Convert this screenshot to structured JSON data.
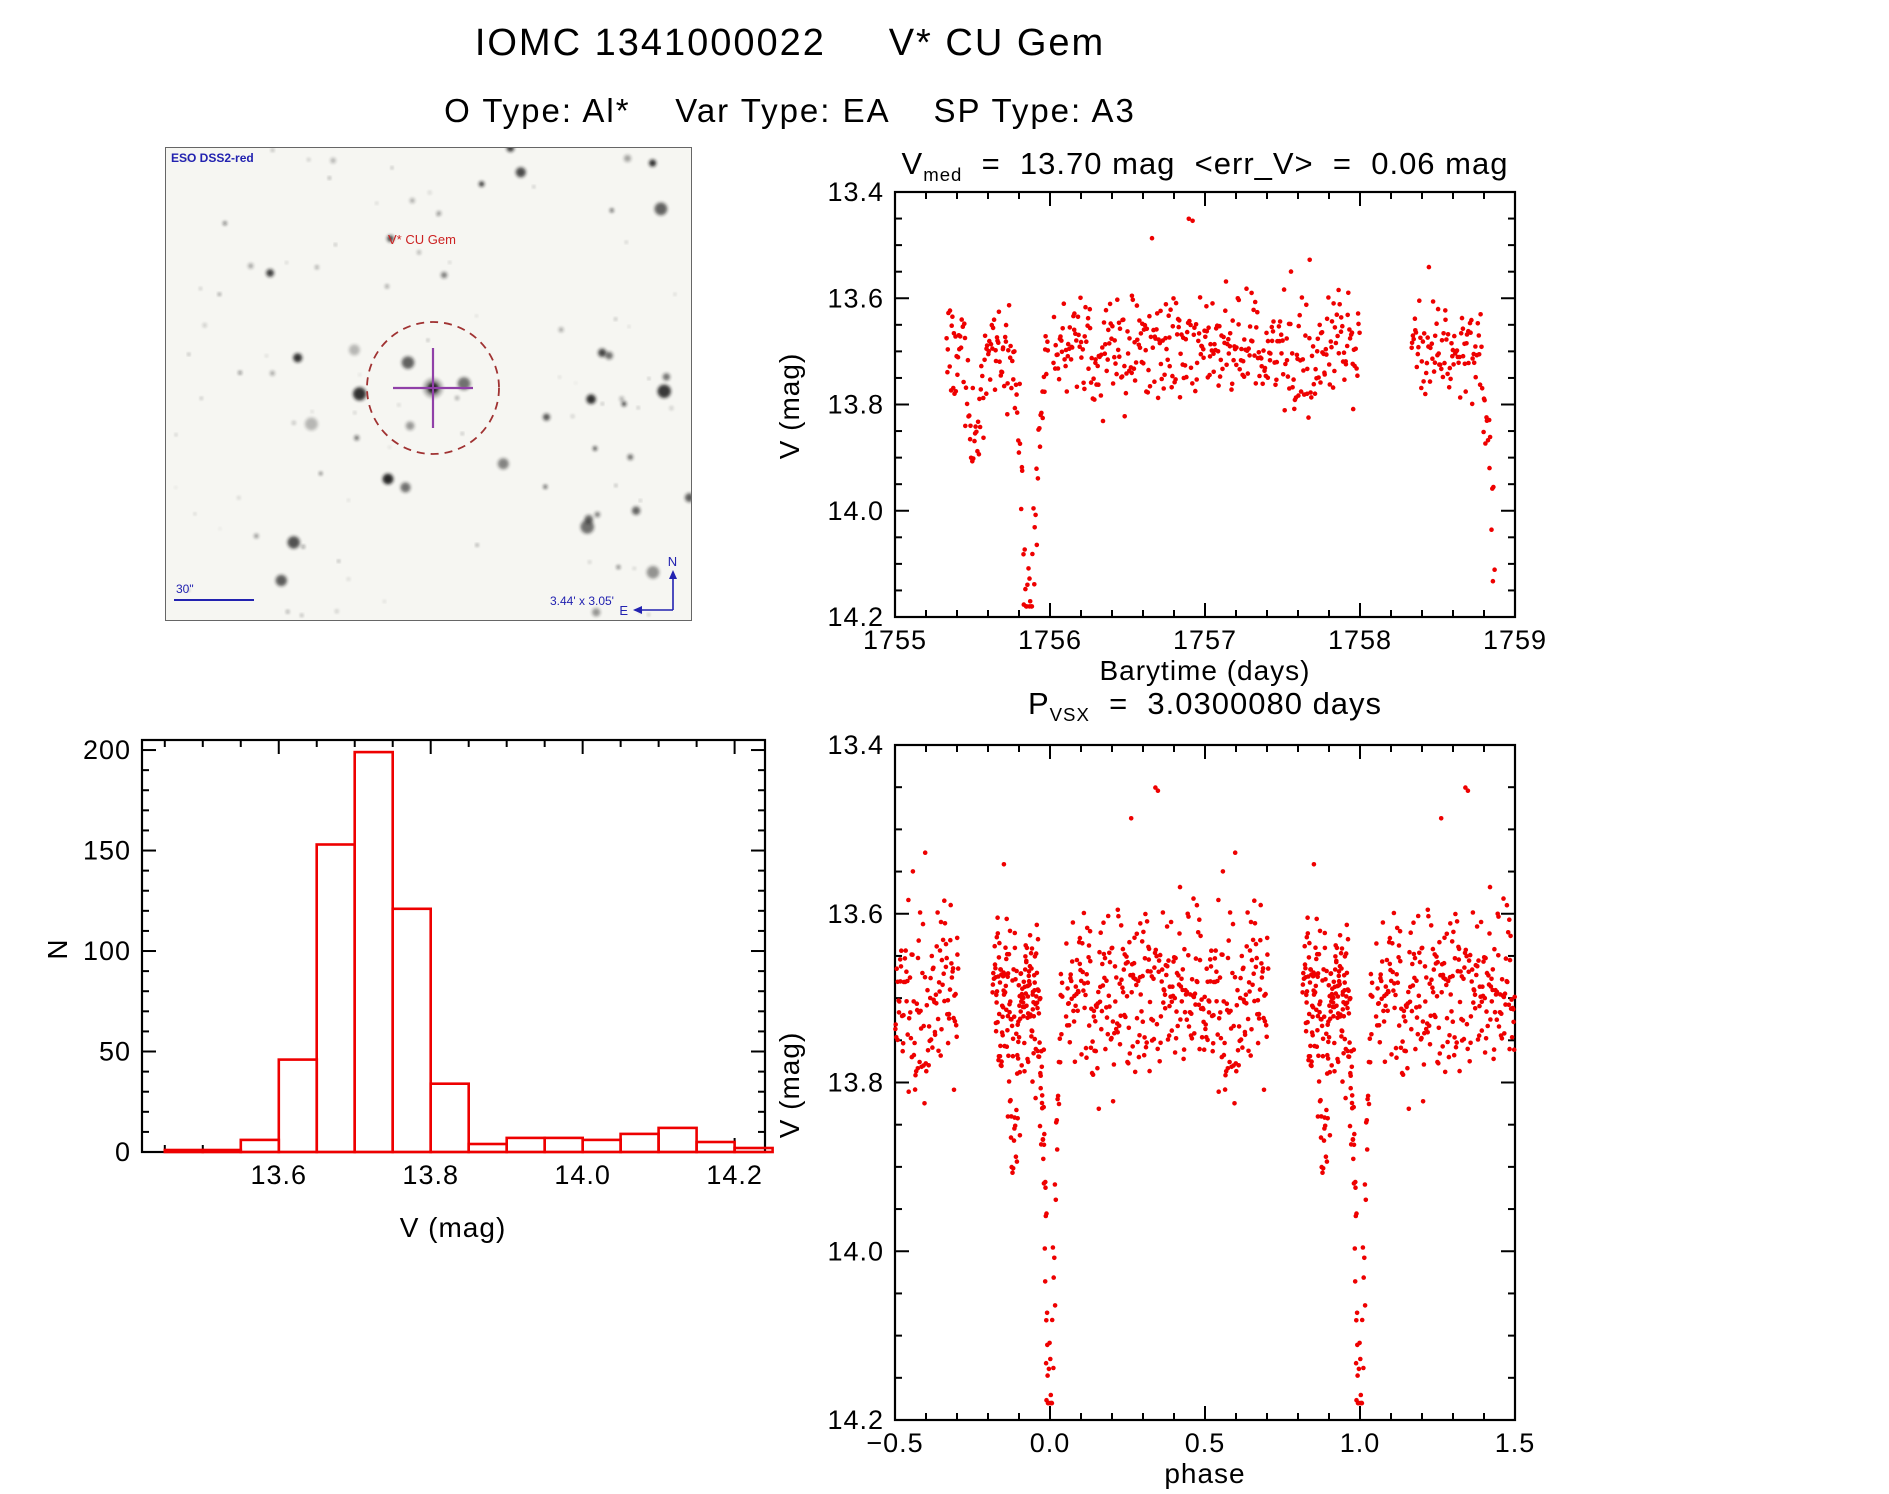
{
  "page": {
    "title": "IOMC 1341000022     V* CU Gem",
    "subtitle": "O Type: Al*    Var Type: EA    SP Type: A3",
    "text_color": "#000000",
    "background": "#ffffff",
    "accent_red": "#ee0000"
  },
  "finder": {
    "survey_label": "ESO DSS2-red",
    "target_label": "V* CU Gem",
    "scale_label": "30\"",
    "size_label": "3.44' x 3.05'",
    "compass_n_label": "N",
    "compass_e_label": "E",
    "blue": "#2222b0",
    "red": "#cc2222",
    "circle_color": "#a03232",
    "cross_color": "#9040a8",
    "background": "#f6f6f2",
    "star_color": "#141414",
    "starfield": {
      "seed": 20,
      "n_stars": 115,
      "target_x": 267,
      "target_y": 240,
      "circle_radius": 66
    }
  },
  "chart_data": [
    {
      "id": "lightcurve",
      "type": "scatter",
      "title": "V_med = 13.70 mag  <err_V> = 0.06 mag",
      "title_parts": {
        "base": "V",
        "sub": "med",
        "rest": "  =  13.70 mag  <err_V>  =  0.06 mag"
      },
      "xlabel": "Barytime (days)",
      "ylabel": "V (mag)",
      "xlim": [
        1755,
        1759
      ],
      "ylim": [
        13.4,
        14.2
      ],
      "y_inverted": true,
      "xticks": [
        1755,
        1756,
        1757,
        1758,
        1759
      ],
      "xtick_labels": [
        "1755",
        "1756",
        "1757",
        "1758",
        "1759"
      ],
      "yticks": [
        13.4,
        13.6,
        13.8,
        14.0,
        14.2
      ],
      "ytick_labels": [
        "13.4",
        "13.6",
        "13.8",
        "14.0",
        "14.2"
      ],
      "x_minors": 4,
      "y_minors": 3,
      "point_color": "#ee0000",
      "point_radius": 2.3,
      "series_model": {
        "description": "OMC V-band light curve: out-of-eclipse level 13.70 mag with ~0.05 mag scatter; deep primary eclipses (to V~14.15) centred near barytime 1755.86 and 1758.89 (period 3.03 d); shallow ~13.95 dip near 1755.52; data gaps before 1755.33, between 1758.02-1758.33 and after 1758.87",
        "seed": 20,
        "baseline": 13.7,
        "noise_sigma": 0.047,
        "outlier_rate": 0.008,
        "period": 3.030008,
        "eclipse_epoch": 1755.865,
        "eclipse_depth": 0.47,
        "eclipse_sigma": 0.048,
        "extra_dips": [
          {
            "t": 1755.52,
            "depth": 0.18,
            "sigma": 0.035
          }
        ],
        "segments": [
          {
            "start": 1755.33,
            "end": 1755.99,
            "n": 140
          },
          {
            "start": 1756.02,
            "end": 1758.0,
            "n": 390
          },
          {
            "start": 1758.33,
            "end": 1758.87,
            "n": 105
          }
        ]
      }
    },
    {
      "id": "histogram",
      "type": "bar",
      "xlabel": "V (mag)",
      "ylabel": "N",
      "xlim": [
        13.42,
        14.24
      ],
      "ylim": [
        0,
        205
      ],
      "xticks": [
        13.6,
        13.8,
        14.0,
        14.2
      ],
      "xtick_labels": [
        "13.6",
        "13.8",
        "14.0",
        "14.2"
      ],
      "yticks": [
        0,
        50,
        100,
        150,
        200
      ],
      "ytick_labels": [
        "0",
        "50",
        "100",
        "150",
        "200"
      ],
      "x_minors": 3,
      "y_minors": 4,
      "bar_color": "#ee0000",
      "bin_width": 0.05,
      "bin_left_edges": [
        13.45,
        13.5,
        13.55,
        13.6,
        13.65,
        13.7,
        13.75,
        13.8,
        13.85,
        13.9,
        13.95,
        14.0,
        14.05,
        14.1,
        14.15,
        14.2
      ],
      "counts": [
        1,
        1,
        6,
        46,
        153,
        199,
        121,
        34,
        4,
        7,
        7,
        6,
        9,
        12,
        5,
        2
      ]
    },
    {
      "id": "phase",
      "type": "scatter",
      "title": "P_VSX = 3.0300080 days",
      "title_parts": {
        "base": "P",
        "sub": "VSX",
        "rest": "  =  3.0300080 days"
      },
      "xlabel": "phase",
      "ylabel": "V (mag)",
      "xlim": [
        -0.5,
        1.5
      ],
      "ylim": [
        13.4,
        14.2
      ],
      "y_inverted": true,
      "xticks": [
        -0.5,
        0.0,
        0.5,
        1.0,
        1.5
      ],
      "xtick_labels": [
        "−0.5",
        "0.0",
        "0.5",
        "1.0",
        "1.5"
      ],
      "yticks": [
        13.4,
        13.6,
        13.8,
        14.0,
        14.2
      ],
      "ytick_labels": [
        "13.4",
        "13.6",
        "13.8",
        "14.0",
        "14.2"
      ],
      "x_minors": 4,
      "y_minors": 3,
      "point_color": "#ee0000",
      "point_radius": 2.3,
      "folded_from": "lightcurve",
      "fold_period": 3.030008,
      "fold_epoch": 1755.865
    }
  ]
}
